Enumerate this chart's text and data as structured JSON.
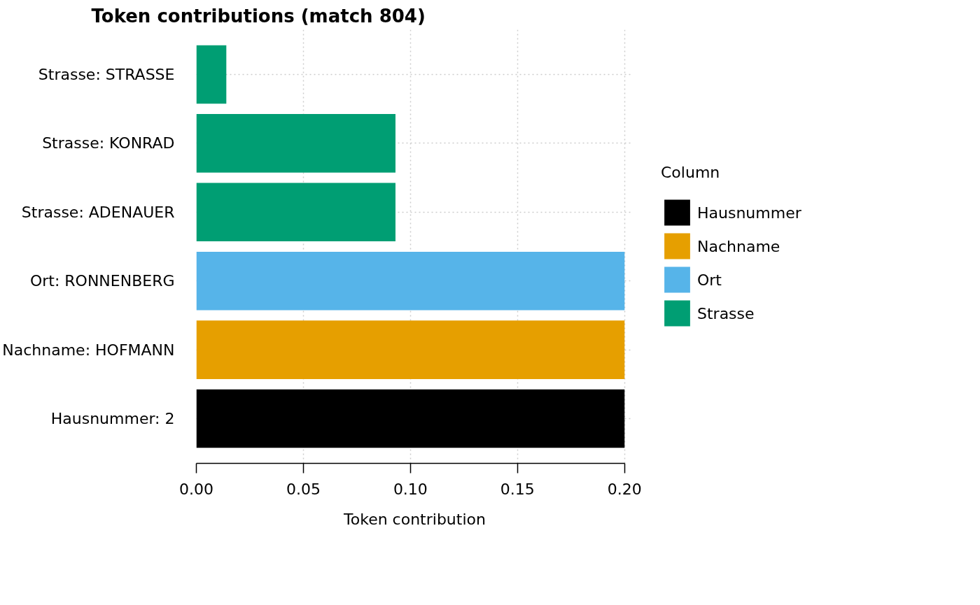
{
  "chart_data": {
    "type": "bar",
    "orientation": "horizontal",
    "title": "Token contributions (match 804)",
    "xlabel": "Token contribution",
    "legend_title": "Column",
    "categories": [
      "Strasse: STRASSE",
      "Strasse: KONRAD",
      "Strasse: ADENAUER",
      "Ort: RONNENBERG",
      "Nachname: HOFMANN",
      "Hausnummer: 2"
    ],
    "series": [
      {
        "name": "Hausnummer",
        "color": "#000000",
        "values": [
          null,
          null,
          null,
          null,
          null,
          0.2
        ]
      },
      {
        "name": "Nachname",
        "color": "#e69f00",
        "values": [
          null,
          null,
          null,
          null,
          0.2,
          null
        ]
      },
      {
        "name": "Ort",
        "color": "#56b4e9",
        "values": [
          null,
          null,
          null,
          0.2,
          null,
          null
        ]
      },
      {
        "name": "Strasse",
        "color": "#009e73",
        "values": [
          0.014,
          0.093,
          0.093,
          null,
          null,
          null
        ]
      }
    ],
    "xlim": [
      0,
      0.204
    ],
    "xticks": [
      {
        "value": 0,
        "label": "0.00"
      },
      {
        "value": 0.05,
        "label": "0.05"
      },
      {
        "value": 0.1,
        "label": "0.10"
      },
      {
        "value": 0.15,
        "label": "0.15"
      },
      {
        "value": 0.2,
        "label": "0.20"
      }
    ],
    "grid": true,
    "legend": "right"
  }
}
